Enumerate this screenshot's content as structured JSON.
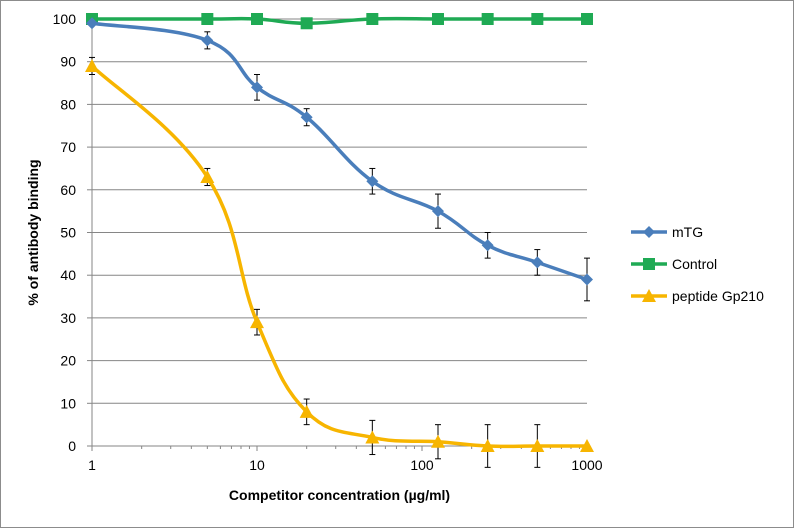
{
  "chart_data": {
    "type": "line",
    "title": "",
    "xlabel": "Competitor concentration (µg/ml)",
    "ylabel": "% of antibody binding",
    "x_scale": "log",
    "xlim": [
      1,
      1000
    ],
    "ylim": [
      0,
      100
    ],
    "x_ticks": [
      "1",
      "10",
      "100",
      "1000"
    ],
    "y_ticks": [
      "0",
      "10",
      "20",
      "30",
      "40",
      "50",
      "60",
      "70",
      "80",
      "90",
      "100"
    ],
    "grid": "horizontal",
    "legend_position": "right",
    "x": [
      1,
      5,
      10,
      20,
      50,
      125,
      250,
      500,
      1000
    ],
    "series": [
      {
        "name": "mTG",
        "color": "#4a7ebb",
        "marker": "diamond",
        "x": [
          1,
          5,
          10,
          20,
          50,
          125,
          250,
          500,
          1000
        ],
        "values": [
          99,
          95,
          84,
          77,
          62,
          55,
          47,
          43,
          39
        ],
        "error": [
          null,
          2,
          3,
          2,
          3,
          4,
          3,
          3,
          5
        ]
      },
      {
        "name": "Control",
        "color": "#1faa54",
        "marker": "square",
        "x": [
          1,
          5,
          10,
          20,
          50,
          125,
          250,
          500,
          1000
        ],
        "values": [
          100,
          100,
          100,
          99,
          100,
          100,
          100,
          100,
          100
        ],
        "error": [
          null,
          null,
          null,
          1,
          1,
          1,
          null,
          1,
          1
        ]
      },
      {
        "name": "peptide Gp210",
        "color": "#f7b500",
        "marker": "triangle",
        "x": [
          1,
          5,
          10,
          20,
          50,
          125,
          250,
          500,
          1000
        ],
        "values": [
          89,
          63,
          29,
          8,
          2,
          1,
          0,
          0,
          0
        ],
        "error": [
          2,
          2,
          3,
          3,
          4,
          4,
          5,
          5,
          null
        ]
      }
    ]
  }
}
